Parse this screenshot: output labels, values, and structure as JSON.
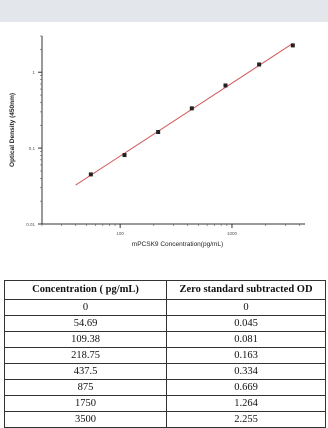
{
  "chart_data": {
    "type": "scatter",
    "xlabel": "mPCSK9 Concentration(pg/mL)",
    "ylabel": "Optical Density (450nm)",
    "xscale": "log",
    "yscale": "log",
    "xlim": [
      20,
      4500
    ],
    "ylim": [
      0.01,
      3
    ],
    "x_ticks": [
      100,
      1000
    ],
    "x_tick_labels": [
      "100",
      "1000"
    ],
    "y_ticks": [
      0.01,
      0.1,
      1
    ],
    "y_tick_labels": [
      "0.01",
      "0.1",
      "1"
    ],
    "grid": false,
    "series": [
      {
        "x": [
          54.69,
          109.38,
          218.75,
          437.5,
          875,
          1750,
          3500
        ],
        "y": [
          0.045,
          0.081,
          0.163,
          0.334,
          0.669,
          1.264,
          2.255
        ],
        "marker_color": "#222222",
        "fit_line_color": "#d05a5a"
      }
    ],
    "fit_line_range": [
      40,
      3500
    ]
  },
  "table": {
    "headers": [
      "Concentration ( pg/mL)",
      "Zero standard subtracted OD"
    ],
    "rows": [
      [
        "0",
        "0"
      ],
      [
        "54.69",
        "0.045"
      ],
      [
        "109.38",
        "0.081"
      ],
      [
        "218.75",
        "0.163"
      ],
      [
        "437.5",
        "0.334"
      ],
      [
        "875",
        "0.669"
      ],
      [
        "1750",
        "1.264"
      ],
      [
        "3500",
        "2.255"
      ]
    ]
  }
}
